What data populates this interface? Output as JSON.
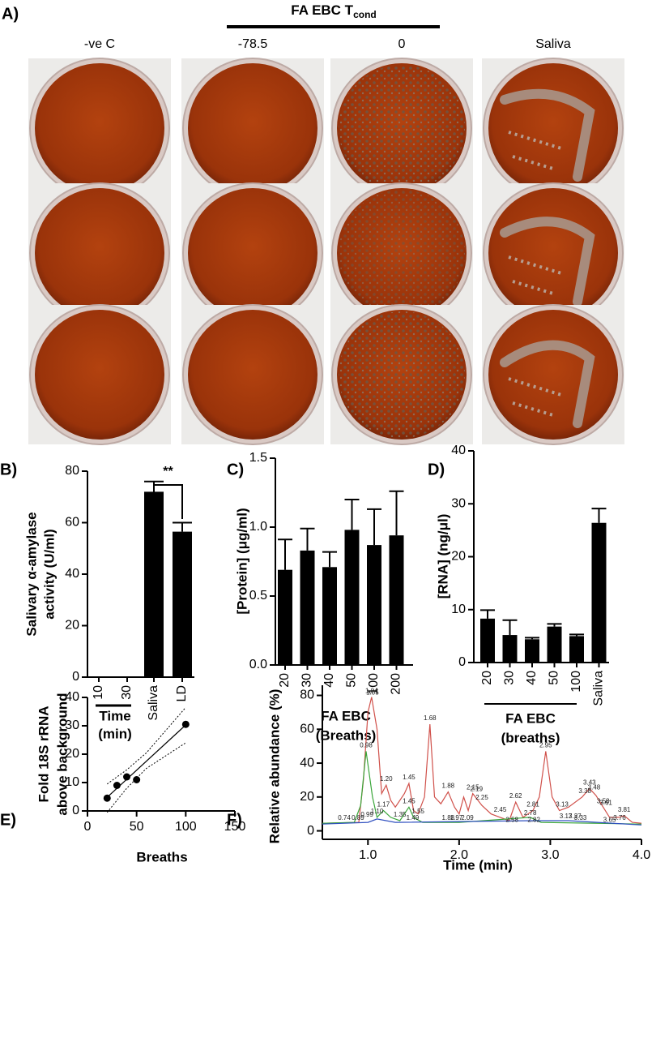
{
  "panel_a": {
    "label": "A)",
    "header": "FA EBC T",
    "header_sub": "cond",
    "columns": [
      "-ve C",
      "-78.5",
      "0",
      "Saliva"
    ]
  },
  "chart_data": [
    {
      "type": "bar",
      "panel_label": "B)",
      "ylabel": [
        "Salivary α-amylase",
        "activity (U/ml)"
      ],
      "categories": [
        "10",
        "30",
        "Saliva",
        "LD"
      ],
      "values": [
        0,
        0,
        72,
        56.5
      ],
      "errors": [
        null,
        null,
        4,
        3.5
      ],
      "group_label": [
        "Time",
        "(min)"
      ],
      "annotation": "**",
      "color": "#000000",
      "ylim": [
        0,
        80
      ],
      "yticks": [
        0,
        20,
        40,
        60,
        80
      ]
    },
    {
      "type": "bar",
      "panel_label": "C)",
      "ylabel": [
        "[Protein] (μg/ml)"
      ],
      "categories": [
        "20",
        "30",
        "40",
        "50",
        "100",
        "200"
      ],
      "values": [
        0.69,
        0.83,
        0.71,
        0.98,
        0.87,
        0.94
      ],
      "errors": [
        0.22,
        0.16,
        0.11,
        0.22,
        0.26,
        0.32
      ],
      "xlabel": [
        "FA EBC",
        "(Breaths)"
      ],
      "color": "#000000",
      "ylim": [
        0,
        1.5
      ],
      "yticks": [
        {
          "value": 0,
          "label": "0.0"
        },
        0.5,
        {
          "value": 1,
          "label": "1.0"
        },
        1.5
      ]
    },
    {
      "type": "bar",
      "panel_label": "D)",
      "ylabel": [
        "[RNA] (ng/μl)"
      ],
      "categories": [
        "20",
        "30",
        "40",
        "50",
        "100",
        "Saliva"
      ],
      "values": [
        8.3,
        5.2,
        4.4,
        6.8,
        5.0,
        26.4
      ],
      "errors": [
        1.6,
        2.8,
        0.3,
        0.5,
        0.3,
        2.7
      ],
      "xlabel": [
        "FA EBC",
        "(breaths)"
      ],
      "color": "#000000",
      "ylim": [
        0,
        40
      ],
      "yticks": [
        0,
        10,
        20,
        30,
        40
      ]
    },
    {
      "type": "scatter",
      "panel_label": "E)",
      "ylabel": [
        "Fold 18S rRNA",
        "above background"
      ],
      "xlabel": [
        "Breaths"
      ],
      "x": [
        20,
        30,
        40,
        50,
        100
      ],
      "y": [
        4.5,
        9,
        12,
        11,
        30.5
      ],
      "color": "#000000",
      "fit": {
        "x": [
          20,
          100
        ],
        "y": [
          4.8,
          30.3
        ]
      },
      "ci_upper": {
        "x": [
          20,
          40,
          60,
          100
        ],
        "y": [
          9.5,
          14.5,
          20.5,
          36.5
        ]
      },
      "ci_lower": {
        "x": [
          20,
          40,
          60,
          100
        ],
        "y": [
          -0.5,
          8,
          15,
          24
        ]
      },
      "xlim": [
        0,
        150
      ],
      "xticks": [
        0,
        50,
        100,
        150
      ],
      "ylim": [
        0,
        40
      ],
      "yticks": [
        0,
        10,
        20,
        30,
        40
      ]
    },
    {
      "type": "line",
      "panel_label": "F)",
      "ylabel": [
        "Relative abundance (%)"
      ],
      "xlabel": [
        "Time (min)"
      ],
      "series": [
        {
          "name": "red",
          "color": "#d0504a",
          "x": [
            0.5,
            0.9,
            0.95,
            1.0,
            1.04,
            1.1,
            1.15,
            1.2,
            1.25,
            1.3,
            1.4,
            1.45,
            1.5,
            1.55,
            1.62,
            1.68,
            1.73,
            1.8,
            1.88,
            1.95,
            2.0,
            2.05,
            2.1,
            2.15,
            2.25,
            2.35,
            2.45,
            2.55,
            2.62,
            2.7,
            2.81,
            2.88,
            2.95,
            3.02,
            3.1,
            3.2,
            3.35,
            3.43,
            3.5,
            3.58,
            3.65,
            3.75,
            3.81,
            3.9,
            4.0
          ],
          "y": [
            4.5,
            5,
            30,
            70,
            79,
            60,
            22,
            27,
            18,
            14,
            22,
            28,
            12,
            10,
            20,
            63,
            20,
            16,
            23,
            14,
            10,
            20,
            12,
            22,
            15,
            10,
            8,
            6,
            17,
            8,
            12,
            20,
            47,
            20,
            12,
            14,
            20,
            25,
            21,
            14,
            8,
            8,
            9,
            5,
            4.5
          ]
        },
        {
          "name": "green",
          "color": "#3aa63a",
          "x": [
            0.5,
            0.85,
            0.92,
            0.98,
            1.05,
            1.1,
            1.17,
            1.25,
            1.35,
            1.45,
            1.5,
            1.6,
            2.0,
            2.78,
            2.9,
            4.0
          ],
          "y": [
            4.5,
            5,
            15,
            47,
            20,
            8,
            12,
            8,
            6,
            14,
            8,
            5,
            5,
            8,
            5,
            4
          ]
        },
        {
          "name": "blue",
          "color": "#3050c0",
          "x": [
            0.5,
            1.0,
            1.1,
            1.3,
            2.8,
            3.2,
            4.0
          ],
          "y": [
            4,
            5,
            7,
            5,
            6,
            6,
            3.5
          ]
        }
      ],
      "peaks": [
        {
          "x": 1.04,
          "y": 80,
          "label": "1.04"
        },
        {
          "x": 1.05,
          "y": 79,
          "label": "1.05"
        },
        {
          "x": 0.98,
          "y": 48,
          "label": "0.98"
        },
        {
          "x": 1.2,
          "y": 28,
          "label": "1.20"
        },
        {
          "x": 1.45,
          "y": 29,
          "label": "1.45"
        },
        {
          "x": 1.68,
          "y": 64,
          "label": "1.68"
        },
        {
          "x": 1.88,
          "y": 24,
          "label": "1.88"
        },
        {
          "x": 2.15,
          "y": 23,
          "label": "2.15"
        },
        {
          "x": 2.19,
          "y": 22,
          "label": "2.19"
        },
        {
          "x": 2.25,
          "y": 17,
          "label": "2.25"
        },
        {
          "x": 2.45,
          "y": 10,
          "label": "2.45"
        },
        {
          "x": 2.62,
          "y": 18,
          "label": "2.62"
        },
        {
          "x": 2.81,
          "y": 13,
          "label": "2.81"
        },
        {
          "x": 2.95,
          "y": 48,
          "label": "2.95"
        },
        {
          "x": 3.13,
          "y": 13,
          "label": "3.13"
        },
        {
          "x": 3.38,
          "y": 21,
          "label": "3.38"
        },
        {
          "x": 3.43,
          "y": 26,
          "label": "3.43"
        },
        {
          "x": 3.48,
          "y": 23,
          "label": "3.48"
        },
        {
          "x": 3.58,
          "y": 15,
          "label": "3.58"
        },
        {
          "x": 3.61,
          "y": 14,
          "label": "3.61"
        },
        {
          "x": 3.81,
          "y": 10,
          "label": "3.81"
        },
        {
          "x": 3.76,
          "y": 5,
          "label": "3.76"
        },
        {
          "x": 0.74,
          "y": 5,
          "label": "0.74"
        },
        {
          "x": 0.89,
          "y": 5,
          "label": "0.89"
        },
        {
          "x": 0.99,
          "y": 7,
          "label": "0.99"
        },
        {
          "x": 1.1,
          "y": 9,
          "label": "1.10"
        },
        {
          "x": 1.17,
          "y": 13,
          "label": "1.17"
        },
        {
          "x": 1.35,
          "y": 7,
          "label": "1.35"
        },
        {
          "x": 1.45,
          "y": 15,
          "label": "1.45"
        },
        {
          "x": 1.49,
          "y": 5,
          "label": "1.49"
        },
        {
          "x": 1.55,
          "y": 9,
          "label": "1.55"
        },
        {
          "x": 1.88,
          "y": 5,
          "label": "1.88"
        },
        {
          "x": 1.97,
          "y": 5,
          "label": "1.97"
        },
        {
          "x": 2.09,
          "y": 5,
          "label": "2.09"
        },
        {
          "x": 2.58,
          "y": 4,
          "label": "2.58"
        },
        {
          "x": 2.78,
          "y": 8,
          "label": "2.78"
        },
        {
          "x": 2.82,
          "y": 4,
          "label": "2.82"
        },
        {
          "x": 3.17,
          "y": 6,
          "label": "3.17"
        },
        {
          "x": 3.27,
          "y": 6,
          "label": "3.27"
        },
        {
          "x": 3.33,
          "y": 5,
          "label": "3.33"
        },
        {
          "x": 3.65,
          "y": 4,
          "label": "3.65"
        }
      ],
      "xlim": [
        0.5,
        4.0
      ],
      "xticks": [
        {
          "value": 1,
          "label": "1.0"
        },
        {
          "value": 2,
          "label": "2.0"
        },
        {
          "value": 3,
          "label": "3.0"
        },
        {
          "value": 4,
          "label": "4.0"
        }
      ],
      "ylim": [
        -5,
        86
      ],
      "yticks": [
        0,
        20,
        40,
        60,
        80
      ]
    }
  ]
}
